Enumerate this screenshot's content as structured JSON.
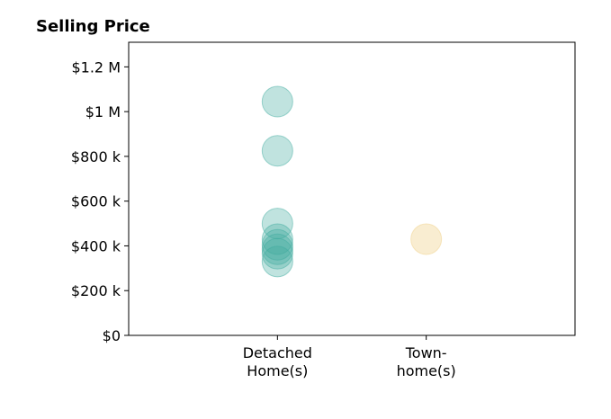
{
  "chart_data": {
    "type": "scatter",
    "title": "Selling Price",
    "xlabel": "",
    "ylabel": "",
    "categories": [
      [
        "Detached",
        "Home(s)"
      ],
      [
        "Town-",
        "home(s)"
      ]
    ],
    "xlim": [
      -1,
      2
    ],
    "ylim": [
      0,
      1310000
    ],
    "yticks": [
      0,
      200000,
      400000,
      600000,
      800000,
      1000000,
      1200000
    ],
    "ytick_labels": [
      "$0",
      "$200 k",
      "$400 k",
      "$600 k",
      "$800 k",
      "$1 M",
      "$1.2 M"
    ],
    "grid": false,
    "legend": "none",
    "series": [
      {
        "category_index": 0,
        "color": "#3fab9f",
        "opacity": 0.33,
        "values": [
          1045000,
          825000,
          500000,
          430000,
          405000,
          385000,
          365000,
          330000
        ]
      },
      {
        "category_index": 1,
        "color": "#f2d79a",
        "opacity": 0.45,
        "values": [
          430000
        ]
      }
    ]
  }
}
